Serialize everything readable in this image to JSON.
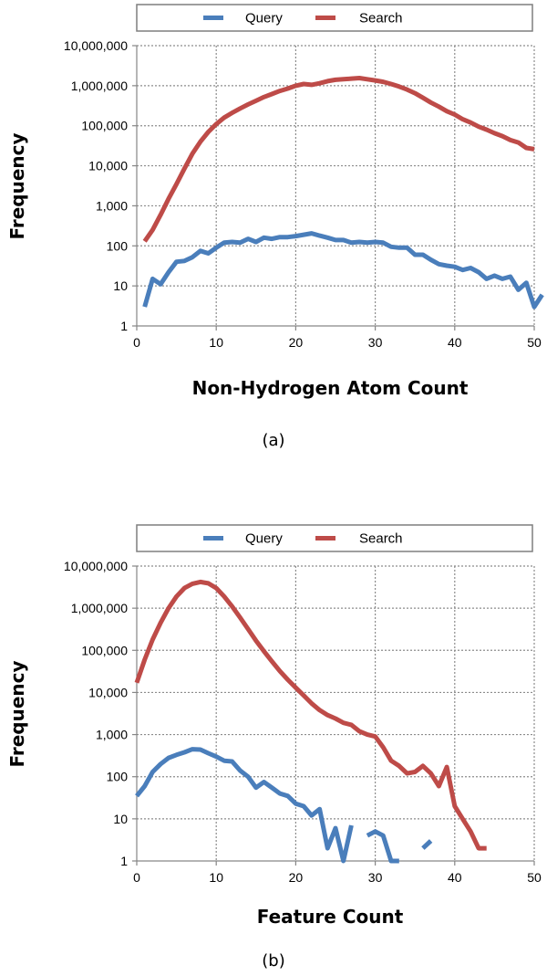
{
  "chart_data": [
    {
      "type": "line",
      "caption": "(a)",
      "xlabel": "Non-Hydrogen Atom Count",
      "ylabel": "Frequency",
      "xlim": [
        0,
        50
      ],
      "xticks": [
        0,
        10,
        20,
        30,
        40,
        50
      ],
      "ylim": [
        1,
        10000000
      ],
      "yscale": "log",
      "yticks": [
        1,
        10,
        100,
        1000,
        10000,
        100000,
        1000000,
        10000000
      ],
      "ytick_labels": [
        "1",
        "10",
        "100",
        "1,000",
        "10,000",
        "100,000",
        "1,000,000",
        "10,000,000"
      ],
      "grid": true,
      "legend_position": "top",
      "series": [
        {
          "name": "Query",
          "color": "#4a7ebb",
          "points": [
            [
              1,
              3
            ],
            [
              2,
              15
            ],
            [
              3,
              11
            ],
            [
              4,
              22
            ],
            [
              5,
              40
            ],
            [
              6,
              42
            ],
            [
              7,
              52
            ],
            [
              8,
              75
            ],
            [
              9,
              65
            ],
            [
              10,
              90
            ],
            [
              11,
              120
            ],
            [
              12,
              125
            ],
            [
              13,
              120
            ],
            [
              14,
              150
            ],
            [
              15,
              125
            ],
            [
              16,
              160
            ],
            [
              17,
              150
            ],
            [
              18,
              165
            ],
            [
              19,
              165
            ],
            [
              20,
              175
            ],
            [
              21,
              190
            ],
            [
              22,
              205
            ],
            [
              23,
              180
            ],
            [
              24,
              160
            ],
            [
              25,
              140
            ],
            [
              26,
              140
            ],
            [
              27,
              120
            ],
            [
              28,
              125
            ],
            [
              29,
              120
            ],
            [
              30,
              125
            ],
            [
              31,
              120
            ],
            [
              32,
              95
            ],
            [
              33,
              90
            ],
            [
              34,
              90
            ],
            [
              35,
              60
            ],
            [
              36,
              60
            ],
            [
              37,
              45
            ],
            [
              38,
              35
            ],
            [
              39,
              32
            ],
            [
              40,
              30
            ],
            [
              41,
              25
            ],
            [
              42,
              28
            ],
            [
              43,
              22
            ],
            [
              44,
              15
            ],
            [
              45,
              18
            ],
            [
              46,
              15
            ],
            [
              47,
              17
            ],
            [
              48,
              8
            ],
            [
              49,
              12
            ],
            [
              50,
              3
            ],
            [
              51,
              6
            ]
          ]
        },
        {
          "name": "Search",
          "color": "#be4b48",
          "points": [
            [
              1,
              130
            ],
            [
              2,
              250
            ],
            [
              3,
              600
            ],
            [
              4,
              1500
            ],
            [
              5,
              3500
            ],
            [
              6,
              8500
            ],
            [
              7,
              20000
            ],
            [
              8,
              40000
            ],
            [
              9,
              70000
            ],
            [
              10,
              110000
            ],
            [
              11,
              160000
            ],
            [
              12,
              210000
            ],
            [
              13,
              270000
            ],
            [
              14,
              340000
            ],
            [
              15,
              420000
            ],
            [
              16,
              520000
            ],
            [
              17,
              620000
            ],
            [
              18,
              740000
            ],
            [
              19,
              850000
            ],
            [
              20,
              1000000
            ],
            [
              21,
              1100000
            ],
            [
              22,
              1050000
            ],
            [
              23,
              1150000
            ],
            [
              24,
              1300000
            ],
            [
              25,
              1400000
            ],
            [
              26,
              1450000
            ],
            [
              27,
              1500000
            ],
            [
              28,
              1550000
            ],
            [
              29,
              1450000
            ],
            [
              30,
              1350000
            ],
            [
              31,
              1250000
            ],
            [
              32,
              1100000
            ],
            [
              33,
              950000
            ],
            [
              34,
              800000
            ],
            [
              35,
              650000
            ],
            [
              36,
              500000
            ],
            [
              37,
              380000
            ],
            [
              38,
              300000
            ],
            [
              39,
              230000
            ],
            [
              40,
              190000
            ],
            [
              41,
              145000
            ],
            [
              42,
              120000
            ],
            [
              43,
              95000
            ],
            [
              44,
              80000
            ],
            [
              45,
              65000
            ],
            [
              46,
              55000
            ],
            [
              47,
              44000
            ],
            [
              48,
              38000
            ],
            [
              49,
              28000
            ],
            [
              50,
              26000
            ]
          ]
        }
      ]
    },
    {
      "type": "line",
      "caption": "(b)",
      "xlabel": "Feature Count",
      "ylabel": "Frequency",
      "xlim": [
        0,
        50
      ],
      "xticks": [
        0,
        10,
        20,
        30,
        40,
        50
      ],
      "ylim": [
        1,
        10000000
      ],
      "yscale": "log",
      "yticks": [
        1,
        10,
        100,
        1000,
        10000,
        100000,
        1000000,
        10000000
      ],
      "ytick_labels": [
        "1",
        "10",
        "100",
        "1,000",
        "10,000",
        "100,000",
        "1,000,000",
        "10,000,000"
      ],
      "grid": true,
      "legend_position": "top",
      "series": [
        {
          "name": "Query",
          "color": "#4a7ebb",
          "points": [
            [
              0,
              35
            ],
            [
              1,
              60
            ],
            [
              2,
              130
            ],
            [
              3,
              200
            ],
            [
              4,
              280
            ],
            [
              5,
              330
            ],
            [
              6,
              380
            ],
            [
              7,
              450
            ],
            [
              8,
              440
            ],
            [
              9,
              360
            ],
            [
              10,
              300
            ],
            [
              11,
              240
            ],
            [
              12,
              230
            ],
            [
              13,
              140
            ],
            [
              14,
              100
            ],
            [
              15,
              55
            ],
            [
              16,
              75
            ],
            [
              17,
              55
            ],
            [
              18,
              40
            ],
            [
              19,
              35
            ],
            [
              20,
              23
            ],
            [
              21,
              20
            ],
            [
              22,
              12
            ],
            [
              23,
              17
            ],
            [
              24,
              2
            ],
            [
              25,
              6
            ],
            [
              26,
              1
            ],
            [
              27,
              7
            ],
            null,
            [
              29,
              4
            ],
            [
              30,
              5
            ],
            [
              31,
              4
            ],
            [
              32,
              1
            ],
            [
              33,
              1
            ],
            null,
            [
              36,
              2
            ],
            [
              37,
              3
            ]
          ]
        },
        {
          "name": "Search",
          "color": "#be4b48",
          "points": [
            [
              0,
              17000
            ],
            [
              1,
              60000
            ],
            [
              2,
              180000
            ],
            [
              3,
              450000
            ],
            [
              4,
              1000000
            ],
            [
              5,
              1900000
            ],
            [
              6,
              3000000
            ],
            [
              7,
              3800000
            ],
            [
              8,
              4200000
            ],
            [
              9,
              3900000
            ],
            [
              10,
              3000000
            ],
            [
              11,
              1900000
            ],
            [
              12,
              1100000
            ],
            [
              13,
              600000
            ],
            [
              14,
              320000
            ],
            [
              15,
              170000
            ],
            [
              16,
              95000
            ],
            [
              17,
              55000
            ],
            [
              18,
              32000
            ],
            [
              19,
              20000
            ],
            [
              20,
              13000
            ],
            [
              21,
              8500
            ],
            [
              22,
              5500
            ],
            [
              23,
              3800
            ],
            [
              24,
              2900
            ],
            [
              25,
              2400
            ],
            [
              26,
              1900
            ],
            [
              27,
              1700
            ],
            [
              28,
              1200
            ],
            [
              29,
              1000
            ],
            [
              30,
              900
            ],
            [
              31,
              500
            ],
            [
              32,
              240
            ],
            [
              33,
              180
            ],
            [
              34,
              120
            ],
            [
              35,
              130
            ],
            [
              36,
              180
            ],
            [
              37,
              120
            ],
            [
              38,
              60
            ],
            [
              39,
              170
            ],
            [
              40,
              20
            ],
            [
              41,
              10
            ],
            [
              42,
              5
            ],
            [
              43,
              2
            ],
            [
              44,
              2
            ]
          ]
        }
      ]
    }
  ]
}
